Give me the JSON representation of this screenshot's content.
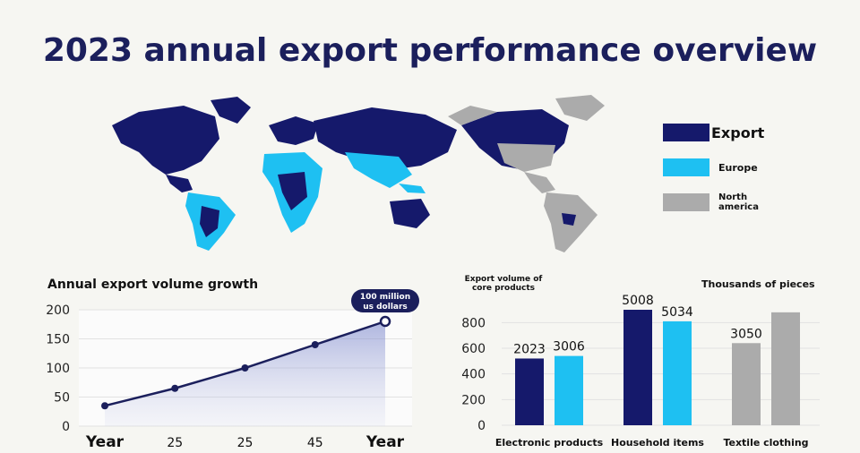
{
  "title": "2023 annual export performance overview",
  "map": {
    "legend": [
      {
        "label": "Export",
        "color": "#15196b"
      },
      {
        "label": "Europe",
        "color": "#1ec0f2"
      },
      {
        "label": "North america",
        "color": "#ababab"
      }
    ]
  },
  "chart_data": [
    {
      "type": "area",
      "title": "Annual export volume growth",
      "x": [
        "Year",
        "25",
        "25",
        "45",
        "Year"
      ],
      "values": [
        35,
        65,
        100,
        140,
        180
      ],
      "ylim": [
        0,
        200
      ],
      "yticks": [
        0,
        50,
        100,
        150,
        200
      ],
      "annotation": "100 million us dollars",
      "color": "#1b1f5c",
      "grid": true
    },
    {
      "type": "bar",
      "title": "Export volume of core products",
      "unit_label": "Thousands of pieces",
      "categories": [
        "Electronic products",
        "Household items",
        "Textile clothing"
      ],
      "series": [
        {
          "values": [
            520,
            900,
            640
          ],
          "colors": [
            "#15196b",
            "#15196b",
            "#ababab"
          ]
        },
        {
          "values": [
            540,
            810,
            880
          ],
          "colors": [
            "#1ec0f2",
            "#1ec0f2",
            "#ababab"
          ]
        }
      ],
      "data_labels": [
        "2023",
        "3006",
        "5008",
        "5034",
        "3050"
      ],
      "ylim": [
        0,
        900
      ],
      "yticks": [
        0,
        200,
        400,
        600,
        800
      ],
      "grid": true
    }
  ]
}
